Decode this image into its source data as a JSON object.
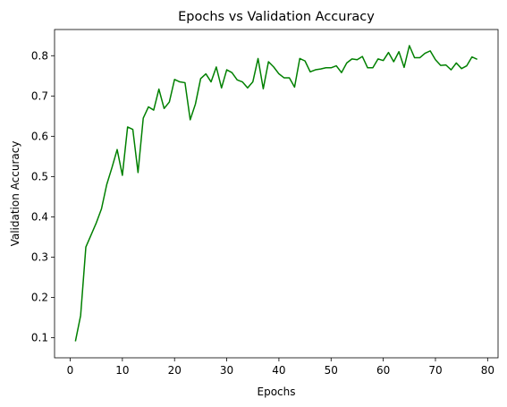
{
  "chart_data": {
    "type": "line",
    "title": "Epochs vs Validation Accuracy",
    "xlabel": "Epochs",
    "ylabel": "Validation Accuracy",
    "xlim": [
      -3,
      82
    ],
    "ylim": [
      0.05,
      0.865
    ],
    "xticks": [
      0,
      10,
      20,
      30,
      40,
      50,
      60,
      70,
      80
    ],
    "yticks": [
      0.1,
      0.2,
      0.3,
      0.4,
      0.5,
      0.6,
      0.7,
      0.8
    ],
    "grid": false,
    "series": [
      {
        "color": "#008000",
        "x": [
          1,
          2,
          3,
          4,
          5,
          6,
          7,
          8,
          9,
          10,
          11,
          12,
          13,
          14,
          15,
          16,
          17,
          18,
          19,
          20,
          21,
          22,
          23,
          24,
          25,
          26,
          27,
          28,
          29,
          30,
          31,
          32,
          33,
          34,
          35,
          36,
          37,
          38,
          39,
          40,
          41,
          42,
          43,
          44,
          45,
          46,
          47,
          48,
          49,
          50,
          51,
          52,
          53,
          54,
          55,
          56,
          57,
          58,
          59,
          60,
          61,
          62,
          63,
          64,
          65,
          66,
          67,
          68,
          69,
          70,
          71,
          72,
          73,
          74,
          75,
          76,
          77,
          78
        ],
        "values": [
          0.091,
          0.155,
          0.325,
          0.355,
          0.385,
          0.42,
          0.48,
          0.522,
          0.567,
          0.503,
          0.623,
          0.617,
          0.51,
          0.645,
          0.673,
          0.665,
          0.717,
          0.669,
          0.685,
          0.741,
          0.735,
          0.733,
          0.641,
          0.68,
          0.743,
          0.755,
          0.735,
          0.772,
          0.72,
          0.765,
          0.758,
          0.74,
          0.735,
          0.72,
          0.735,
          0.793,
          0.718,
          0.785,
          0.772,
          0.755,
          0.745,
          0.745,
          0.722,
          0.793,
          0.787,
          0.76,
          0.765,
          0.767,
          0.77,
          0.77,
          0.775,
          0.758,
          0.782,
          0.792,
          0.79,
          0.798,
          0.77,
          0.77,
          0.792,
          0.788,
          0.808,
          0.785,
          0.81,
          0.771,
          0.825,
          0.795,
          0.795,
          0.806,
          0.812,
          0.79,
          0.776,
          0.777,
          0.765,
          0.782,
          0.768,
          0.775,
          0.797,
          0.791
        ]
      }
    ]
  }
}
